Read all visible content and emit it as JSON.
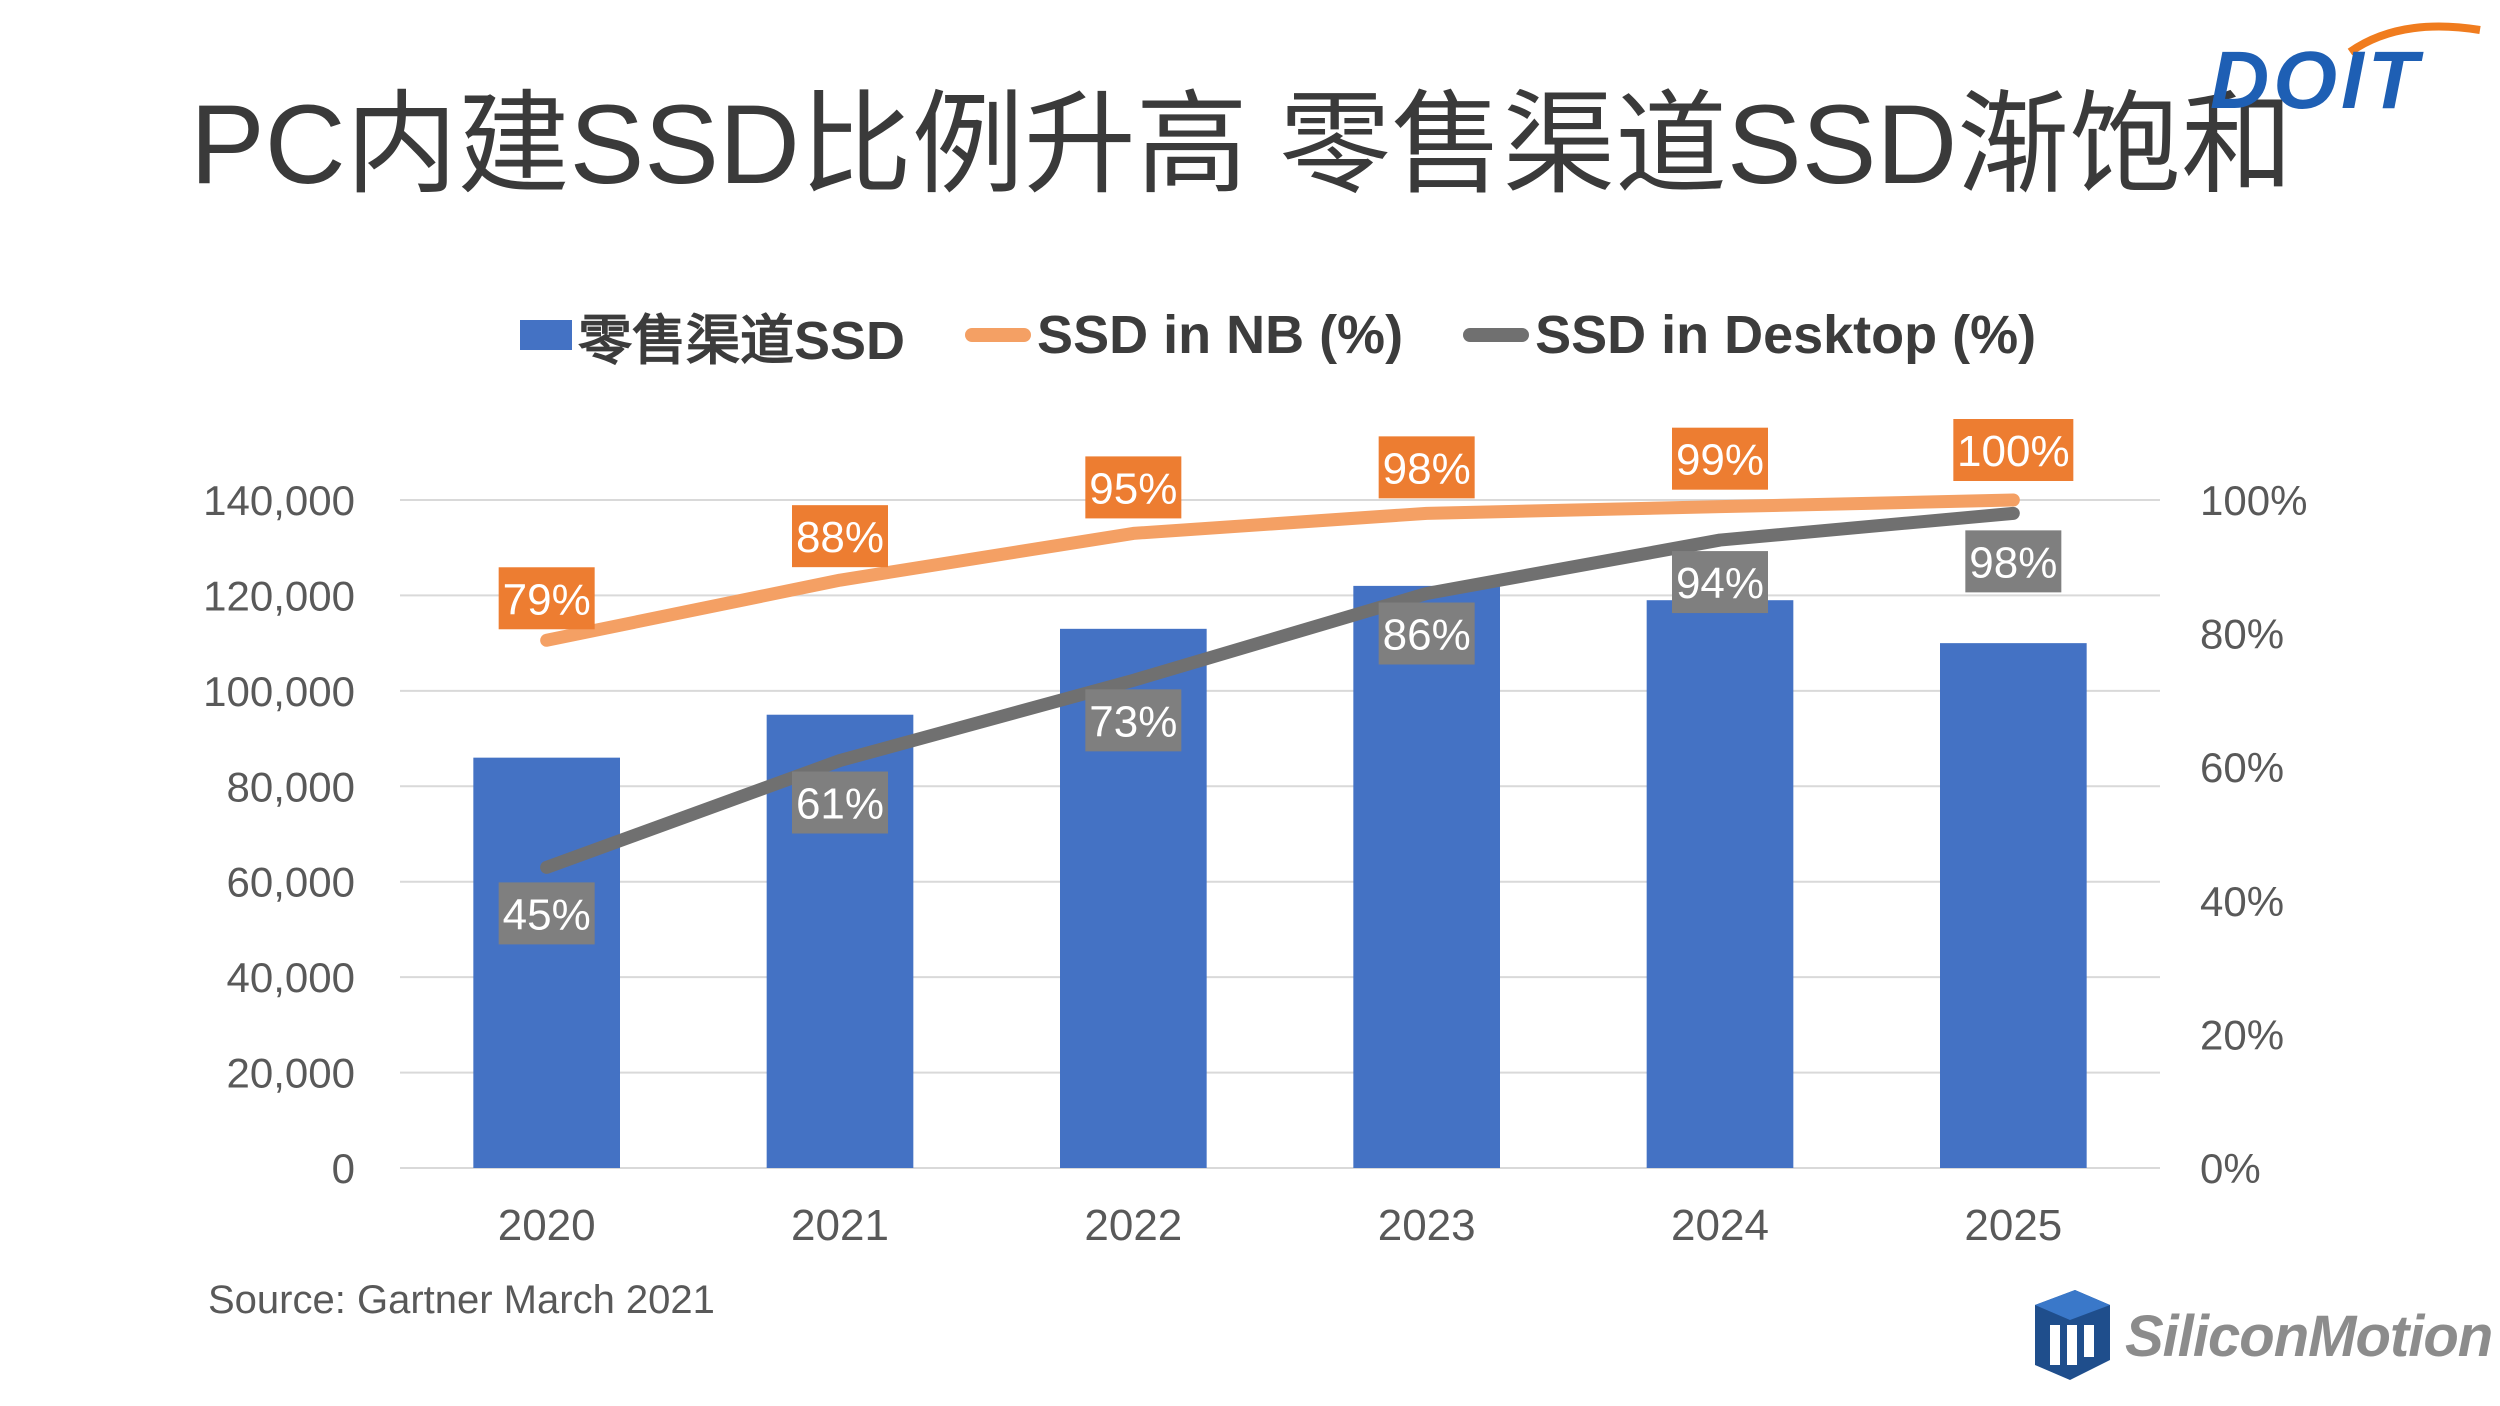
{
  "title": "PC内建SSD比例升高 零售渠道SSD渐饱和",
  "logo_top_text": "DOIT",
  "logo_bottom_text": "SiliconMotion",
  "source": "Source: Gartner March 2021",
  "colors": {
    "bar": "#4472c4",
    "nb_line": "#f4a064",
    "nb_label_bg": "#ed7d31",
    "desktop_line": "#707070",
    "desktop_label_bg": "#7f7f7f",
    "grid": "#d9d9d9",
    "axis_text": "#595959"
  },
  "legend": [
    {
      "label": "零售渠道SSD",
      "type": "bar"
    },
    {
      "label": "SSD in NB (%)",
      "type": "line"
    },
    {
      "label": "SSD in Desktop (%)",
      "type": "line"
    }
  ],
  "chart_data": {
    "type": "bar",
    "categories": [
      "2020",
      "2021",
      "2022",
      "2023",
      "2024",
      "2025"
    ],
    "series": [
      {
        "name": "零售渠道SSD",
        "type": "bar",
        "axis": "left",
        "values": [
          86000,
          95000,
          113000,
          122000,
          119000,
          110000
        ]
      },
      {
        "name": "SSD in NB (%)",
        "type": "line",
        "axis": "right",
        "values": [
          79,
          88,
          95,
          98,
          99,
          100
        ],
        "labels": [
          "79%",
          "88%",
          "95%",
          "98%",
          "99%",
          "100%"
        ]
      },
      {
        "name": "SSD in Desktop (%)",
        "type": "line",
        "axis": "right",
        "values": [
          45,
          61,
          73,
          86,
          94,
          98
        ],
        "labels": [
          "45%",
          "61%",
          "73%",
          "86%",
          "94%",
          "98%"
        ]
      }
    ],
    "y_left": {
      "min": 0,
      "max": 140000,
      "step": 20000,
      "tick_labels": [
        "0",
        "20,000",
        "40,000",
        "60,000",
        "80,000",
        "100,000",
        "120,000",
        "140,000"
      ]
    },
    "y_right": {
      "min": 0,
      "max": 100,
      "step": 20,
      "tick_labels": [
        "0%",
        "20%",
        "40%",
        "60%",
        "80%",
        "100%"
      ]
    },
    "grid": true,
    "legend_position": "top-center"
  }
}
